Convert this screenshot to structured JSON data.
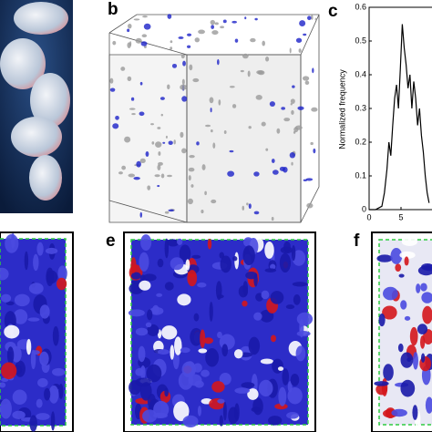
{
  "panels": {
    "b": "b",
    "c": "c",
    "e": "e",
    "f": "f"
  },
  "chart_data": {
    "type": "line",
    "ylabel": "Normalized frequency",
    "x": [
      0,
      1,
      2,
      2.4,
      2.8,
      3.1,
      3.4,
      3.7,
      4.0,
      4.3,
      4.6,
      4.9,
      5.2,
      5.5,
      5.8,
      6.1,
      6.4,
      6.7,
      7.0,
      7.3,
      7.6,
      7.9,
      8.2,
      8.5,
      8.8,
      9.1,
      9.4
    ],
    "series": [
      {
        "color": "#000000",
        "values": [
          0,
          0,
          0.01,
          0.05,
          0.12,
          0.2,
          0.16,
          0.25,
          0.33,
          0.37,
          0.3,
          0.42,
          0.55,
          0.48,
          0.43,
          0.36,
          0.4,
          0.3,
          0.38,
          0.33,
          0.25,
          0.3,
          0.22,
          0.17,
          0.1,
          0.05,
          0.02
        ]
      }
    ],
    "xlim": [
      0,
      10
    ],
    "ylim": [
      0,
      0.6
    ],
    "xticks": [
      0,
      5
    ],
    "yticks": [
      0,
      0.1,
      0.2,
      0.3,
      0.4,
      0.5,
      0.6
    ]
  }
}
